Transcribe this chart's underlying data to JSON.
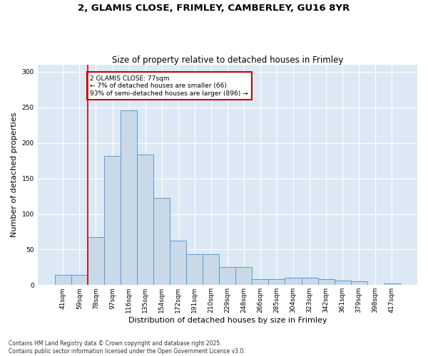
{
  "title_line1": "2, GLAMIS CLOSE, FRIMLEY, CAMBERLEY, GU16 8YR",
  "title_line2": "Size of property relative to detached houses in Frimley",
  "xlabel": "Distribution of detached houses by size in Frimley",
  "ylabel": "Number of detached properties",
  "categories": [
    "41sqm",
    "59sqm",
    "78sqm",
    "97sqm",
    "116sqm",
    "135sqm",
    "154sqm",
    "172sqm",
    "191sqm",
    "210sqm",
    "229sqm",
    "248sqm",
    "266sqm",
    "285sqm",
    "304sqm",
    "323sqm",
    "342sqm",
    "361sqm",
    "379sqm",
    "398sqm",
    "417sqm"
  ],
  "values": [
    14,
    14,
    67,
    182,
    246,
    184,
    123,
    62,
    43,
    43,
    25,
    25,
    8,
    8,
    10,
    10,
    8,
    6,
    5,
    0,
    2
  ],
  "bar_color": "#c9d9e8",
  "bar_edge_color": "#5b9bd5",
  "vline_x": 1.5,
  "vline_color": "#cc0000",
  "annotation_text": "2 GLAMIS CLOSE: 77sqm\n← 7% of detached houses are smaller (66)\n93% of semi-detached houses are larger (896) →",
  "annotation_box_color": "#cc0000",
  "ylim": [
    0,
    310
  ],
  "yticks": [
    0,
    50,
    100,
    150,
    200,
    250,
    300
  ],
  "background_color": "#dce9f5",
  "footer_text": "Contains HM Land Registry data © Crown copyright and database right 2025.\nContains public sector information licensed under the Open Government Licence v3.0.",
  "title_fontsize": 9.5,
  "subtitle_fontsize": 8.5,
  "tick_fontsize": 6.5,
  "xlabel_fontsize": 8,
  "ylabel_fontsize": 8,
  "footer_fontsize": 5.5
}
